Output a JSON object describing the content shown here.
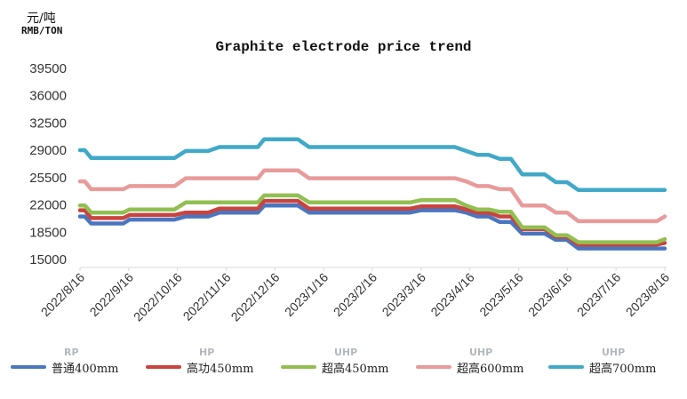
{
  "unit_cn": "元/吨",
  "unit_en": "RMB/TON",
  "chart_data": {
    "type": "line",
    "title": "Graphite electrode price trend",
    "xlabel": "",
    "ylabel": "",
    "ylim": [
      15000,
      39500
    ],
    "yticks": [
      15000,
      18500,
      22000,
      25500,
      29000,
      32500,
      36000,
      39500
    ],
    "xlim": [
      "2022-08-16",
      "2023-08-16"
    ],
    "x_ticks": [
      "2022/8/16",
      "2022/9/16",
      "2022/10/16",
      "2022/11/16",
      "2022/12/16",
      "2023/1/16",
      "2023/2/16",
      "2023/3/16",
      "2023/4/16",
      "2023/5/16",
      "2023/6/16",
      "2023/7/16",
      "2023/8/16"
    ],
    "grid": false,
    "legend_position": "bottom",
    "series": [
      {
        "name": "普通400mm",
        "code": "RP",
        "color": "#4a76c0",
        "x": [
          "2022-08-16",
          "2022-08-19",
          "2022-08-23",
          "2022-09-12",
          "2022-09-16",
          "2022-10-14",
          "2022-10-21",
          "2022-11-04",
          "2022-11-11",
          "2022-12-05",
          "2022-12-09",
          "2022-12-30",
          "2023-01-06",
          "2023-01-13",
          "2023-03-10",
          "2023-03-17",
          "2023-04-07",
          "2023-04-14",
          "2023-04-21",
          "2023-04-28",
          "2023-05-05",
          "2023-05-12",
          "2023-05-19",
          "2023-05-26",
          "2023-06-02",
          "2023-06-09",
          "2023-06-16",
          "2023-06-23",
          "2023-06-30",
          "2023-07-07",
          "2023-07-14",
          "2023-08-11",
          "2023-08-16"
        ],
        "y": [
          20400,
          20400,
          19500,
          19500,
          20000,
          20000,
          20400,
          20400,
          20900,
          20900,
          21800,
          21800,
          20900,
          20900,
          20900,
          21200,
          21200,
          20900,
          20400,
          20400,
          19700,
          19700,
          18200,
          18200,
          18200,
          17400,
          17400,
          16300,
          16300,
          16300,
          16300,
          16300,
          16300
        ]
      },
      {
        "name": "高功450mm",
        "code": "HP",
        "color": "#c9443e",
        "x": [
          "2022-08-16",
          "2022-08-19",
          "2022-08-23",
          "2022-09-12",
          "2022-09-16",
          "2022-10-14",
          "2022-10-21",
          "2022-11-04",
          "2022-11-11",
          "2022-12-05",
          "2022-12-09",
          "2022-12-30",
          "2023-01-06",
          "2023-01-13",
          "2023-03-10",
          "2023-03-17",
          "2023-04-07",
          "2023-04-14",
          "2023-04-21",
          "2023-04-28",
          "2023-05-05",
          "2023-05-12",
          "2023-05-19",
          "2023-05-26",
          "2023-06-02",
          "2023-06-09",
          "2023-06-16",
          "2023-06-23",
          "2023-06-30",
          "2023-07-07",
          "2023-07-14",
          "2023-08-11",
          "2023-08-16"
        ],
        "y": [
          21200,
          21200,
          20200,
          20200,
          20600,
          20600,
          20900,
          20900,
          21400,
          21400,
          22400,
          22400,
          21400,
          21400,
          21400,
          21700,
          21700,
          21300,
          20900,
          20900,
          20400,
          20400,
          18800,
          18800,
          18800,
          17800,
          17800,
          16800,
          16800,
          16800,
          16800,
          16800,
          17000
        ]
      },
      {
        "name": "超高450mm",
        "code": "UHP",
        "color": "#92bf52",
        "x": [
          "2022-08-16",
          "2022-08-19",
          "2022-08-23",
          "2022-09-12",
          "2022-09-16",
          "2022-10-14",
          "2022-10-21",
          "2022-11-04",
          "2022-11-11",
          "2022-12-05",
          "2022-12-09",
          "2022-12-30",
          "2023-01-06",
          "2023-01-13",
          "2023-03-10",
          "2023-03-17",
          "2023-04-07",
          "2023-04-14",
          "2023-04-21",
          "2023-04-28",
          "2023-05-05",
          "2023-05-12",
          "2023-05-19",
          "2023-05-26",
          "2023-06-02",
          "2023-06-09",
          "2023-06-16",
          "2023-06-23",
          "2023-06-30",
          "2023-07-07",
          "2023-07-14",
          "2023-08-11",
          "2023-08-16"
        ],
        "y": [
          21800,
          21800,
          20900,
          20900,
          21300,
          21300,
          22200,
          22200,
          22200,
          22200,
          23100,
          23100,
          22200,
          22200,
          22200,
          22500,
          22500,
          21800,
          21300,
          21300,
          21000,
          21000,
          19000,
          19000,
          19000,
          18000,
          18000,
          17100,
          17100,
          17100,
          17100,
          17100,
          17500
        ]
      },
      {
        "name": "超高600mm",
        "code": "UHP",
        "color": "#e79b9a",
        "x": [
          "2022-08-16",
          "2022-08-19",
          "2022-08-23",
          "2022-09-12",
          "2022-09-16",
          "2022-10-14",
          "2022-10-21",
          "2022-11-04",
          "2022-11-11",
          "2022-12-05",
          "2022-12-09",
          "2022-12-30",
          "2023-01-06",
          "2023-01-13",
          "2023-03-10",
          "2023-03-17",
          "2023-04-07",
          "2023-04-14",
          "2023-04-21",
          "2023-04-28",
          "2023-05-05",
          "2023-05-12",
          "2023-05-19",
          "2023-05-26",
          "2023-06-02",
          "2023-06-09",
          "2023-06-16",
          "2023-06-23",
          "2023-06-30",
          "2023-07-07",
          "2023-07-14",
          "2023-08-11",
          "2023-08-16"
        ],
        "y": [
          24900,
          24900,
          23900,
          23900,
          24300,
          24300,
          25300,
          25300,
          25300,
          25300,
          26300,
          26300,
          25300,
          25300,
          25300,
          25300,
          25300,
          24900,
          24300,
          24300,
          23900,
          23900,
          21800,
          21800,
          21800,
          20900,
          20900,
          19800,
          19800,
          19800,
          19800,
          19800,
          20400
        ]
      },
      {
        "name": "超高700mm",
        "code": "UHP",
        "color": "#41a9c8",
        "x": [
          "2022-08-16",
          "2022-08-19",
          "2022-08-23",
          "2022-09-12",
          "2022-09-16",
          "2022-10-14",
          "2022-10-21",
          "2022-11-04",
          "2022-11-11",
          "2022-12-05",
          "2022-12-09",
          "2022-12-30",
          "2023-01-06",
          "2023-01-13",
          "2023-03-10",
          "2023-03-17",
          "2023-04-07",
          "2023-04-14",
          "2023-04-21",
          "2023-04-28",
          "2023-05-05",
          "2023-05-12",
          "2023-05-19",
          "2023-05-26",
          "2023-06-02",
          "2023-06-09",
          "2023-06-16",
          "2023-06-23",
          "2023-06-30",
          "2023-07-07",
          "2023-07-14",
          "2023-08-11",
          "2023-08-16"
        ],
        "y": [
          28900,
          28900,
          27900,
          27900,
          27900,
          27900,
          28800,
          28800,
          29300,
          29300,
          30300,
          30300,
          29300,
          29300,
          29300,
          29300,
          29300,
          28800,
          28300,
          28300,
          27800,
          27800,
          25800,
          25800,
          25800,
          24800,
          24800,
          23800,
          23800,
          23800,
          23800,
          23800,
          23800
        ]
      }
    ]
  }
}
